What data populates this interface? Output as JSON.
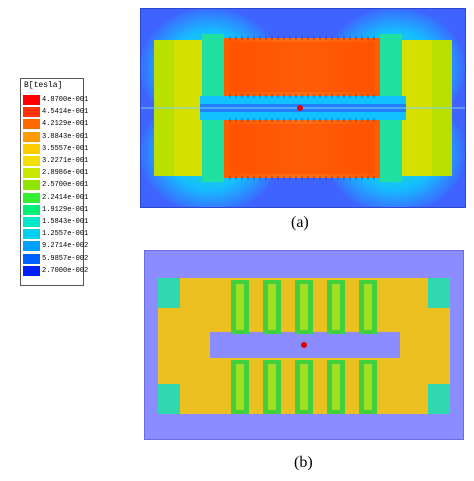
{
  "legend": {
    "title": "B[tesla]",
    "entries": [
      {
        "value": "4.8700e-001",
        "color": "#ff0000"
      },
      {
        "value": "4.5414e-001",
        "color": "#ff3300"
      },
      {
        "value": "4.2129e-001",
        "color": "#ff6a00"
      },
      {
        "value": "3.8843e-001",
        "color": "#ff9a00"
      },
      {
        "value": "3.5557e-001",
        "color": "#ffcc00"
      },
      {
        "value": "3.2271e-001",
        "color": "#f0e000"
      },
      {
        "value": "2.8986e-001",
        "color": "#c8e800"
      },
      {
        "value": "2.5700e-001",
        "color": "#8ee600"
      },
      {
        "value": "2.2414e-001",
        "color": "#33ee33"
      },
      {
        "value": "1.9129e-001",
        "color": "#00f07a"
      },
      {
        "value": "1.5843e-001",
        "color": "#00e8c8"
      },
      {
        "value": "1.2557e-001",
        "color": "#00d0f0"
      },
      {
        "value": "9.2714e-002",
        "color": "#00a0ff"
      },
      {
        "value": "5.9857e-002",
        "color": "#0060ff"
      },
      {
        "value": "2.7000e-002",
        "color": "#0020ff"
      }
    ]
  },
  "captions": {
    "a": "(a)",
    "b": "(b)"
  }
}
